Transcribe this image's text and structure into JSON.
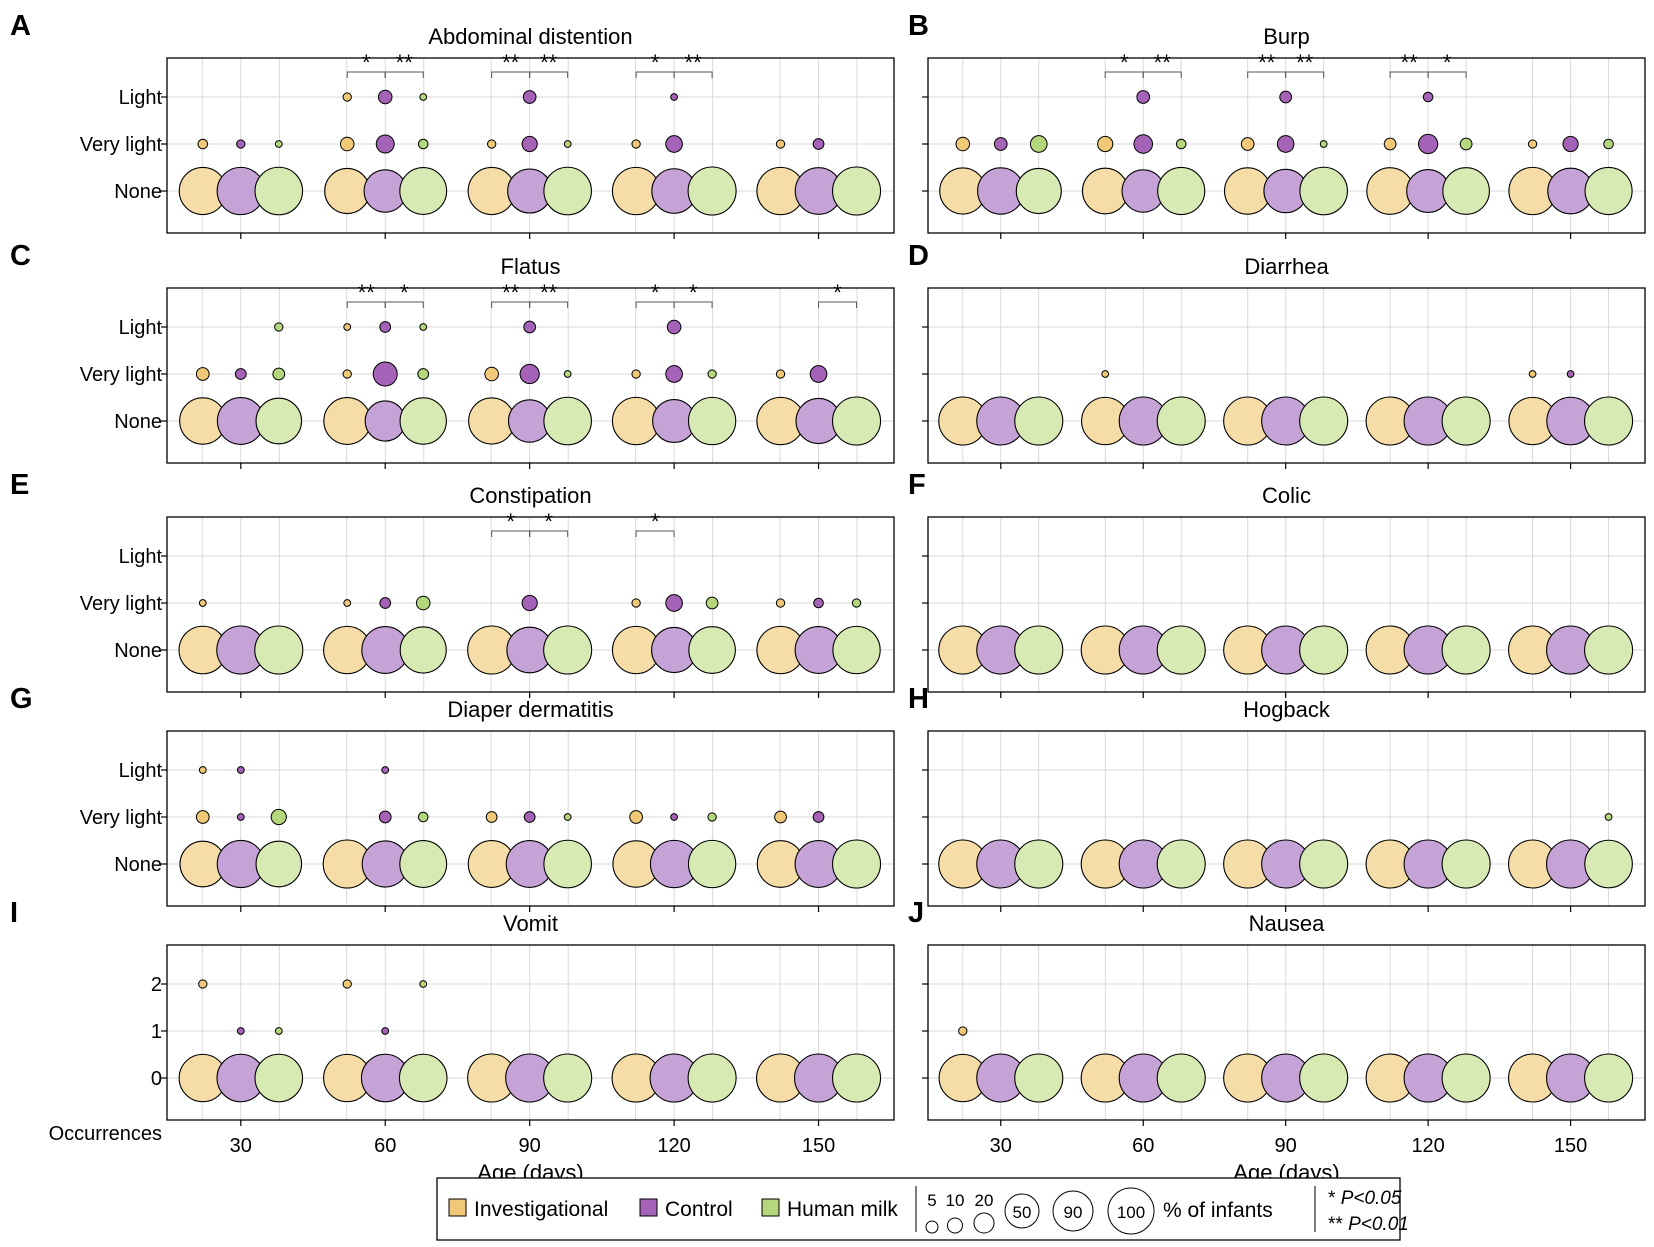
{
  "chart_data": {
    "type": "scatter",
    "subtype": "bubble",
    "x_label": "Age (days)",
    "x_ticks": [
      30,
      60,
      90,
      120,
      150
    ],
    "groups": [
      {
        "key": "inv",
        "name": "Investigational",
        "color": "#f6dca6"
      },
      {
        "key": "ctl",
        "name": "Control",
        "color": "#c6a3d6"
      },
      {
        "key": "hm",
        "name": "Human milk",
        "color": "#d7eab3"
      }
    ],
    "intense_colors": {
      "inv": "#f1c877",
      "ctl": "#a563b8",
      "hm": "#b5d77c"
    },
    "size_unit": "% of infants",
    "size_legend": [
      5,
      10,
      20,
      50,
      90,
      100
    ],
    "significance": {
      "single": "*",
      "double": "**",
      "p05": "P<0.05",
      "p01": "P<0.01"
    },
    "panels": [
      {
        "letter": "A",
        "title": "Abdominal distention",
        "levels": [
          "None",
          "Very light",
          "Light"
        ],
        "data": [
          {
            "day": 30,
            "inv": [
              96,
              4,
              0
            ],
            "ctl": [
              97,
              3,
              0
            ],
            "hm": [
              98,
              2,
              0
            ]
          },
          {
            "day": 60,
            "inv": [
              88,
              8,
              3
            ],
            "ctl": [
              78,
              14,
              8
            ],
            "hm": [
              95,
              4,
              2
            ]
          },
          {
            "day": 90,
            "inv": [
              96,
              3,
              0
            ],
            "ctl": [
              84,
              10,
              7
            ],
            "hm": [
              98,
              2,
              0
            ]
          },
          {
            "day": 120,
            "inv": [
              97,
              3,
              0
            ],
            "ctl": [
              86,
              12,
              2
            ],
            "hm": [
              100,
              0,
              0
            ]
          },
          {
            "day": 150,
            "inv": [
              97,
              3,
              0
            ],
            "ctl": [
              94,
              5,
              0
            ],
            "hm": [
              100,
              0,
              0
            ]
          }
        ],
        "sig": [
          {
            "day": 60,
            "left": "*",
            "right": "**"
          },
          {
            "day": 90,
            "left": "**",
            "right": "**"
          },
          {
            "day": 120,
            "left": "*",
            "right": "**"
          }
        ]
      },
      {
        "letter": "B",
        "title": "Burp",
        "levels": [
          "None",
          "Very light",
          "Light"
        ],
        "data": [
          {
            "day": 30,
            "inv": [
              92,
              8,
              0
            ],
            "ctl": [
              93,
              7,
              0
            ],
            "hm": [
              88,
              12,
              0
            ]
          },
          {
            "day": 60,
            "inv": [
              90,
              10,
              0
            ],
            "ctl": [
              78,
              15,
              7
            ],
            "hm": [
              96,
              4,
              0
            ]
          },
          {
            "day": 90,
            "inv": [
              93,
              7,
              0
            ],
            "ctl": [
              82,
              12,
              6
            ],
            "hm": [
              98,
              2,
              0
            ]
          },
          {
            "day": 120,
            "inv": [
              94,
              6,
              0
            ],
            "ctl": [
              80,
              16,
              4
            ],
            "hm": [
              94,
              6,
              0
            ]
          },
          {
            "day": 150,
            "inv": [
              97,
              3,
              0
            ],
            "ctl": [
              90,
              10,
              0
            ],
            "hm": [
              96,
              4,
              0
            ]
          }
        ],
        "sig": [
          {
            "day": 60,
            "left": "*",
            "right": "**"
          },
          {
            "day": 90,
            "left": "**",
            "right": "**"
          },
          {
            "day": 120,
            "left": "**",
            "right": "*"
          }
        ]
      },
      {
        "letter": "C",
        "title": "Flatus",
        "levels": [
          "None",
          "Very light",
          "Light"
        ],
        "data": [
          {
            "day": 30,
            "inv": [
              93,
              7,
              0
            ],
            "ctl": [
              95,
              5,
              0
            ],
            "hm": [
              90,
              6,
              3
            ]
          },
          {
            "day": 60,
            "inv": [
              95,
              3,
              2
            ],
            "ctl": [
              70,
              25,
              5
            ],
            "hm": [
              93,
              5,
              2
            ]
          },
          {
            "day": 90,
            "inv": [
              92,
              8,
              0
            ],
            "ctl": [
              78,
              16,
              6
            ],
            "hm": [
              98,
              2,
              0
            ]
          },
          {
            "day": 120,
            "inv": [
              97,
              3,
              0
            ],
            "ctl": [
              80,
              12,
              8
            ],
            "hm": [
              97,
              3,
              0
            ]
          },
          {
            "day": 150,
            "inv": [
              97,
              3,
              0
            ],
            "ctl": [
              88,
              12,
              0
            ],
            "hm": [
              100,
              0,
              0
            ]
          }
        ],
        "sig": [
          {
            "day": 60,
            "left": "**",
            "right": "*"
          },
          {
            "day": 90,
            "left": "**",
            "right": "**"
          },
          {
            "day": 120,
            "left": "*",
            "right": "*"
          },
          {
            "day": 150,
            "left": "",
            "right": "*"
          }
        ]
      },
      {
        "letter": "D",
        "title": "Diarrhea",
        "levels": [
          "None",
          "Very light",
          "Light"
        ],
        "data": [
          {
            "day": 30,
            "inv": [
              100,
              0,
              0
            ],
            "ctl": [
              100,
              0,
              0
            ],
            "hm": [
              100,
              0,
              0
            ]
          },
          {
            "day": 60,
            "inv": [
              97,
              2,
              0
            ],
            "ctl": [
              100,
              0,
              0
            ],
            "hm": [
              100,
              0,
              0
            ]
          },
          {
            "day": 90,
            "inv": [
              100,
              0,
              0
            ],
            "ctl": [
              100,
              0,
              0
            ],
            "hm": [
              100,
              0,
              0
            ]
          },
          {
            "day": 120,
            "inv": [
              100,
              0,
              0
            ],
            "ctl": [
              100,
              0,
              0
            ],
            "hm": [
              100,
              0,
              0
            ]
          },
          {
            "day": 150,
            "inv": [
              97,
              2,
              0
            ],
            "ctl": [
              98,
              2,
              0
            ],
            "hm": [
              100,
              0,
              0
            ]
          }
        ],
        "sig": []
      },
      {
        "letter": "E",
        "title": "Constipation",
        "levels": [
          "None",
          "Very light",
          "Light"
        ],
        "data": [
          {
            "day": 30,
            "inv": [
              98,
              2,
              0
            ],
            "ctl": [
              100,
              0,
              0
            ],
            "hm": [
              100,
              0,
              0
            ]
          },
          {
            "day": 60,
            "inv": [
              97,
              2,
              0
            ],
            "ctl": [
              95,
              5,
              0
            ],
            "hm": [
              92,
              8,
              0
            ]
          },
          {
            "day": 90,
            "inv": [
              100,
              0,
              0
            ],
            "ctl": [
              90,
              10,
              0
            ],
            "hm": [
              100,
              0,
              0
            ]
          },
          {
            "day": 120,
            "inv": [
              97,
              3,
              0
            ],
            "ctl": [
              88,
              12,
              0
            ],
            "hm": [
              94,
              6,
              0
            ]
          },
          {
            "day": 150,
            "inv": [
              97,
              3,
              0
            ],
            "ctl": [
              95,
              4,
              0
            ],
            "hm": [
              97,
              3,
              0
            ]
          }
        ],
        "sig": [
          {
            "day": 90,
            "left": "*",
            "right": "*"
          },
          {
            "day": 120,
            "left": "*",
            "right": ""
          }
        ]
      },
      {
        "letter": "F",
        "title": "Colic",
        "levels": [
          "None",
          "Very light",
          "Light"
        ],
        "data": [
          {
            "day": 30,
            "inv": [
              100,
              0,
              0
            ],
            "ctl": [
              100,
              0,
              0
            ],
            "hm": [
              100,
              0,
              0
            ]
          },
          {
            "day": 60,
            "inv": [
              100,
              0,
              0
            ],
            "ctl": [
              100,
              0,
              0
            ],
            "hm": [
              100,
              0,
              0
            ]
          },
          {
            "day": 90,
            "inv": [
              100,
              0,
              0
            ],
            "ctl": [
              100,
              0,
              0
            ],
            "hm": [
              100,
              0,
              0
            ]
          },
          {
            "day": 120,
            "inv": [
              100,
              0,
              0
            ],
            "ctl": [
              100,
              0,
              0
            ],
            "hm": [
              100,
              0,
              0
            ]
          },
          {
            "day": 150,
            "inv": [
              100,
              0,
              0
            ],
            "ctl": [
              100,
              0,
              0
            ],
            "hm": [
              100,
              0,
              0
            ]
          }
        ],
        "sig": []
      },
      {
        "letter": "G",
        "title": "Diaper dermatitis",
        "levels": [
          "None",
          "Very light",
          "Light"
        ],
        "data": [
          {
            "day": 30,
            "inv": [
              90,
              7,
              2
            ],
            "ctl": [
              96,
              2,
              2
            ],
            "hm": [
              90,
              10,
              0
            ]
          },
          {
            "day": 60,
            "inv": [
              100,
              0,
              0
            ],
            "ctl": [
              92,
              6,
              2
            ],
            "hm": [
              95,
              4,
              0
            ]
          },
          {
            "day": 90,
            "inv": [
              95,
              5,
              0
            ],
            "ctl": [
              95,
              5,
              0
            ],
            "hm": [
              98,
              2,
              0
            ]
          },
          {
            "day": 120,
            "inv": [
              93,
              7,
              0
            ],
            "ctl": [
              97,
              2,
              0
            ],
            "hm": [
              97,
              3,
              0
            ]
          },
          {
            "day": 150,
            "inv": [
              94,
              6,
              0
            ],
            "ctl": [
              95,
              5,
              0
            ],
            "hm": [
              100,
              0,
              0
            ]
          }
        ],
        "sig": []
      },
      {
        "letter": "H",
        "title": "Hogback",
        "levels": [
          "None",
          "Very light",
          "Light"
        ],
        "data": [
          {
            "day": 30,
            "inv": [
              100,
              0,
              0
            ],
            "ctl": [
              100,
              0,
              0
            ],
            "hm": [
              100,
              0,
              0
            ]
          },
          {
            "day": 60,
            "inv": [
              100,
              0,
              0
            ],
            "ctl": [
              100,
              0,
              0
            ],
            "hm": [
              100,
              0,
              0
            ]
          },
          {
            "day": 90,
            "inv": [
              100,
              0,
              0
            ],
            "ctl": [
              100,
              0,
              0
            ],
            "hm": [
              100,
              0,
              0
            ]
          },
          {
            "day": 120,
            "inv": [
              100,
              0,
              0
            ],
            "ctl": [
              100,
              0,
              0
            ],
            "hm": [
              100,
              0,
              0
            ]
          },
          {
            "day": 150,
            "inv": [
              100,
              0,
              0
            ],
            "ctl": [
              100,
              0,
              0
            ],
            "hm": [
              98,
              2,
              0
            ]
          }
        ],
        "sig": []
      },
      {
        "letter": "I",
        "title": "Vomit",
        "levels": [
          "0",
          "1",
          "2"
        ],
        "y_axis_label": "Occurrences",
        "data": [
          {
            "day": 30,
            "inv": [
              97,
              0,
              3
            ],
            "ctl": [
              98,
              2,
              0
            ],
            "hm": [
              98,
              2,
              0
            ]
          },
          {
            "day": 60,
            "inv": [
              97,
              0,
              3
            ],
            "ctl": [
              98,
              2,
              0
            ],
            "hm": [
              98,
              0,
              2
            ]
          },
          {
            "day": 90,
            "inv": [
              100,
              0,
              0
            ],
            "ctl": [
              100,
              0,
              0
            ],
            "hm": [
              100,
              0,
              0
            ]
          },
          {
            "day": 120,
            "inv": [
              100,
              0,
              0
            ],
            "ctl": [
              100,
              0,
              0
            ],
            "hm": [
              100,
              0,
              0
            ]
          },
          {
            "day": 150,
            "inv": [
              100,
              0,
              0
            ],
            "ctl": [
              100,
              0,
              0
            ],
            "hm": [
              100,
              0,
              0
            ]
          }
        ],
        "sig": []
      },
      {
        "letter": "J",
        "title": "Nausea",
        "levels": [
          "0",
          "1",
          "2"
        ],
        "data": [
          {
            "day": 30,
            "inv": [
              97,
              3,
              0
            ],
            "ctl": [
              100,
              0,
              0
            ],
            "hm": [
              100,
              0,
              0
            ]
          },
          {
            "day": 60,
            "inv": [
              100,
              0,
              0
            ],
            "ctl": [
              100,
              0,
              0
            ],
            "hm": [
              100,
              0,
              0
            ]
          },
          {
            "day": 90,
            "inv": [
              100,
              0,
              0
            ],
            "ctl": [
              100,
              0,
              0
            ],
            "hm": [
              100,
              0,
              0
            ]
          },
          {
            "day": 120,
            "inv": [
              100,
              0,
              0
            ],
            "ctl": [
              100,
              0,
              0
            ],
            "hm": [
              100,
              0,
              0
            ]
          },
          {
            "day": 150,
            "inv": [
              100,
              0,
              0
            ],
            "ctl": [
              100,
              0,
              0
            ],
            "hm": [
              100,
              0,
              0
            ]
          }
        ],
        "sig": []
      }
    ]
  }
}
